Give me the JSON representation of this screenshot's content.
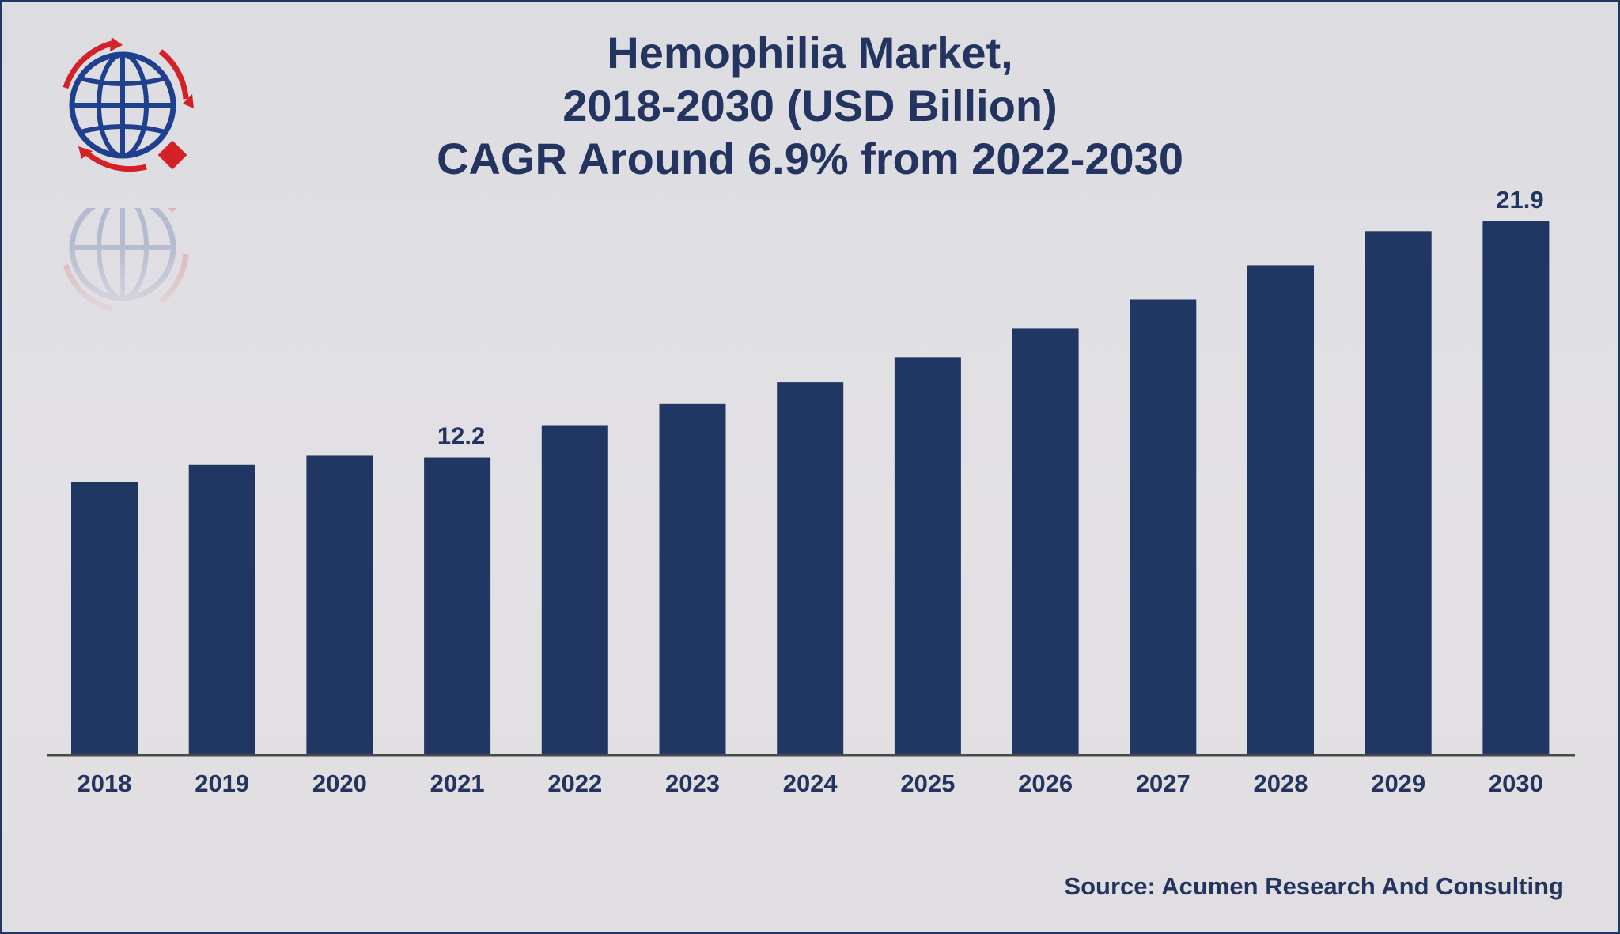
{
  "title_lines": [
    "Hemophilia Market,",
    "2018-2030 (USD Billion)",
    "CAGR Around 6.9% from 2022-2030"
  ],
  "source": "Source: Acumen Research And Consulting",
  "colors": {
    "bar": "#213763",
    "text": "#22345f",
    "axis": "#4a4a4a",
    "logo_blue": "#1f3f8f",
    "logo_red": "#d42027"
  },
  "logo_icon": "globe-icon",
  "chart_data": {
    "type": "bar",
    "title": "Hemophilia Market, 2018-2030 (USD Billion) CAGR Around 6.9% from 2022-2030",
    "categories": [
      "2018",
      "2019",
      "2020",
      "2021",
      "2022",
      "2023",
      "2024",
      "2025",
      "2026",
      "2027",
      "2028",
      "2029",
      "2030"
    ],
    "values": [
      11.2,
      11.9,
      12.3,
      12.2,
      13.5,
      14.4,
      15.3,
      16.3,
      17.5,
      18.7,
      20.1,
      21.5,
      21.9
    ],
    "data_labels": [
      {
        "category": "2021",
        "text": "12.2"
      },
      {
        "category": "2030",
        "text": "21.9"
      }
    ],
    "xlabel": "",
    "ylabel": "",
    "ylim": [
      0,
      23.3
    ],
    "grid": false,
    "legend": "none"
  }
}
